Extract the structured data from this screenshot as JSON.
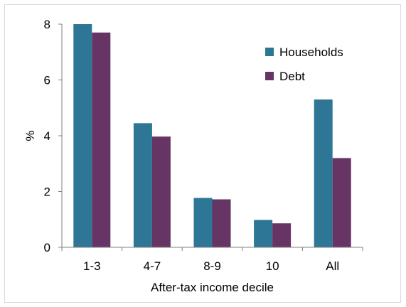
{
  "chart_data": {
    "type": "bar",
    "title": "",
    "xlabel": "After-tax income decile",
    "ylabel": "%",
    "categories": [
      "1-3",
      "4-7",
      "8-9",
      "10",
      "All"
    ],
    "ylim": [
      0,
      8
    ],
    "yticks": [
      "0",
      "2",
      "4",
      "6",
      "8"
    ],
    "grid": false,
    "legend_position": "top-right",
    "series": [
      {
        "name": "Households",
        "color": "#2e7696",
        "values": [
          8.0,
          4.45,
          1.77,
          0.98,
          5.3
        ]
      },
      {
        "name": "Debt",
        "color": "#673466",
        "values": [
          7.7,
          3.97,
          1.72,
          0.86,
          3.2
        ]
      }
    ]
  }
}
